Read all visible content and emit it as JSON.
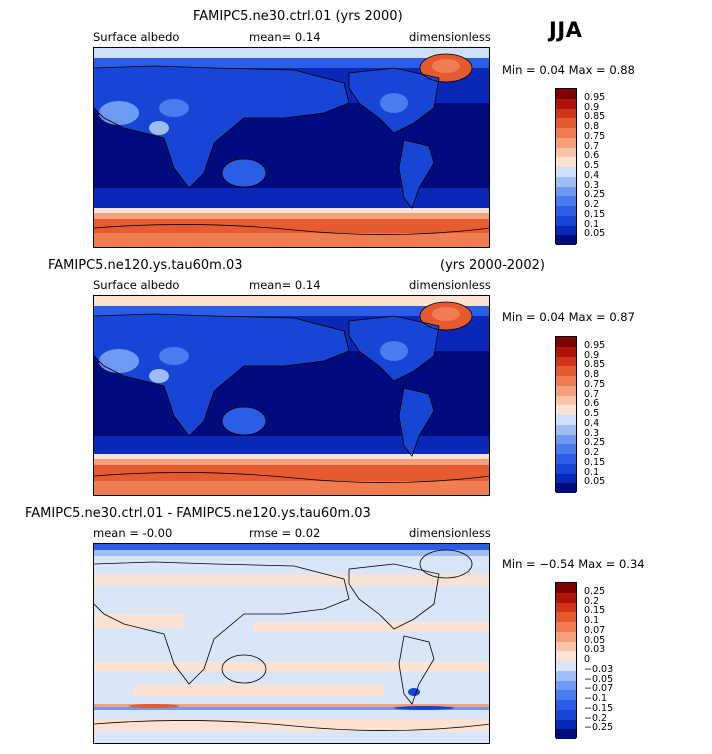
{
  "season": "JJA",
  "panels": [
    {
      "title": "FAMIPC5.ne30.ctrl.01 (yrs 2000)",
      "title_right": "",
      "sub_left": "Surface albedo",
      "sub_mid": "mean=   0.14",
      "sub_right": "dimensionless",
      "stats": "Min =   0.04 Max =   0.88"
    },
    {
      "title": "FAMIPC5.ne120.ys.tau60m.03",
      "title_right": "(yrs 2000-2002)",
      "sub_left": "Surface albedo",
      "sub_mid": "mean=   0.14",
      "sub_right": "dimensionless",
      "stats": "Min =   0.04 Max =   0.87"
    },
    {
      "title": "FAMIPC5.ne30.ctrl.01 - FAMIPC5.ne120.ys.tau60m.03",
      "title_right": "",
      "sub_left": "mean =   -0.00",
      "sub_mid": "rmse =   0.02",
      "sub_right": "dimensionless",
      "stats": "Min =  −0.54 Max =   0.34"
    }
  ],
  "chart_data": [
    {
      "type": "heatmap",
      "title": "FAMIPC5.ne30.ctrl.01 (yrs 2000)",
      "variable": "Surface albedo",
      "units": "dimensionless",
      "mean": 0.14,
      "min": 0.04,
      "max": 0.88,
      "levels": [
        "0.05",
        "0.1",
        "0.15",
        "0.2",
        "0.25",
        "0.3",
        "0.4",
        "0.5",
        "0.6",
        "0.7",
        "0.75",
        "0.8",
        "0.85",
        "0.9",
        "0.95"
      ],
      "colors": [
        "#000c7e",
        "#0a28b8",
        "#1746d6",
        "#2a5ee6",
        "#4a7cf0",
        "#6e9af4",
        "#9fbef6",
        "#cfdffa",
        "#fbe2d2",
        "#f8c4a6",
        "#f5a07a",
        "#f07c52",
        "#e65a30",
        "#d2341a",
        "#b01408",
        "#7e0000"
      ]
    },
    {
      "type": "heatmap",
      "title": "FAMIPC5.ne120.ys.tau60m.03 (yrs 2000-2002)",
      "variable": "Surface albedo",
      "units": "dimensionless",
      "mean": 0.14,
      "min": 0.04,
      "max": 0.87,
      "levels": [
        "0.05",
        "0.1",
        "0.15",
        "0.2",
        "0.25",
        "0.3",
        "0.4",
        "0.5",
        "0.6",
        "0.7",
        "0.75",
        "0.8",
        "0.85",
        "0.9",
        "0.95"
      ],
      "colors": [
        "#000c7e",
        "#0a28b8",
        "#1746d6",
        "#2a5ee6",
        "#4a7cf0",
        "#6e9af4",
        "#9fbef6",
        "#cfdffa",
        "#fbe2d2",
        "#f8c4a6",
        "#f5a07a",
        "#f07c52",
        "#e65a30",
        "#d2341a",
        "#b01408",
        "#7e0000"
      ]
    },
    {
      "type": "heatmap",
      "title": "FAMIPC5.ne30.ctrl.01 - FAMIPC5.ne120.ys.tau60m.03",
      "units": "dimensionless",
      "mean": -0.0,
      "rmse": 0.02,
      "min": -0.54,
      "max": 0.34,
      "levels": [
        "−0.25",
        "−0.2",
        "−0.15",
        "−0.1",
        "−0.07",
        "−0.05",
        "−0.03",
        "0",
        "0.03",
        "0.05",
        "0.07",
        "0.1",
        "0.15",
        "0.2",
        "0.25"
      ],
      "colors": [
        "#000c7e",
        "#0a28b8",
        "#1746d6",
        "#2a5ee6",
        "#4a7cf0",
        "#6e9af4",
        "#9fbef6",
        "#d8e6f8",
        "#fbe2d2",
        "#f8c4a6",
        "#f5a07a",
        "#f07c52",
        "#e65a30",
        "#d2341a",
        "#b01408",
        "#7e0000"
      ]
    }
  ]
}
